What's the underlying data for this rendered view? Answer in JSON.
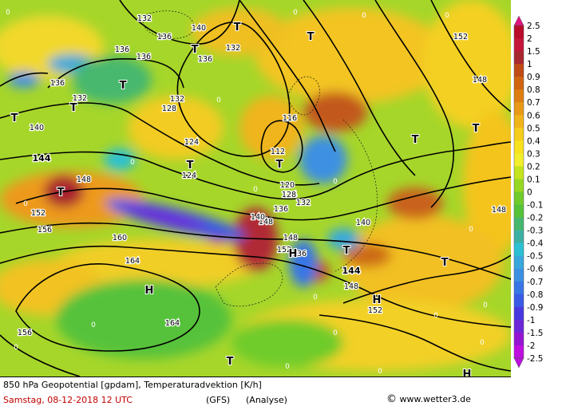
{
  "footer": {
    "title": "850 hPa Geopotential [gpdam], Temperaturadvektion [K/h]",
    "date": "Samstag, 08-12-2018  12 UTC",
    "model": "(GFS)",
    "mode": "(Analyse)",
    "copyright_symbol": "©",
    "site": "www.wetter3.de"
  },
  "legend": {
    "levels": [
      "2.5",
      "2",
      "1.5",
      "1",
      "0.9",
      "0.8",
      "0.7",
      "0.6",
      "0.5",
      "0.4",
      "0.3",
      "0.2",
      "0.1",
      "0",
      "-0.1",
      "-0.2",
      "-0.3",
      "-0.4",
      "-0.5",
      "-0.6",
      "-0.7",
      "-0.8",
      "-0.9",
      "-1",
      "-1.5",
      "-2",
      "-2.5"
    ],
    "colors": [
      "#e2127e",
      "#b90b2a",
      "#c3163a",
      "#a82830",
      "#c04a16",
      "#d06410",
      "#de7e12",
      "#e89a16",
      "#f0b418",
      "#f5ce1c",
      "#f8e21e",
      "#f2ee2c",
      "#c4e41e",
      "#96d824",
      "#70cc2c",
      "#56c23a",
      "#46b86e",
      "#3cb0a4",
      "#2cc0d4",
      "#38a8dc",
      "#3c90e2",
      "#3876e6",
      "#3a5ae6",
      "#4838e0",
      "#6c28d8",
      "#9416d2",
      "#be0ee0"
    ]
  },
  "map": {
    "contour_labels": [
      "132",
      "136",
      "140",
      "132",
      "152",
      "136",
      "136",
      "136",
      "136",
      "148",
      "132",
      "128",
      "132",
      "140",
      "116",
      "124",
      "112",
      "124",
      "120",
      "124",
      "144",
      "148",
      "128",
      "132",
      "136",
      "152",
      "148",
      "140",
      "156",
      "140",
      "148",
      "160",
      "148",
      "152",
      "136",
      "144",
      "164",
      "148",
      "152",
      "156",
      "164"
    ],
    "low_labels": [
      "T",
      "T",
      "T",
      "T",
      "T",
      "T",
      "T",
      "T",
      "T",
      "T",
      "T",
      "T",
      "T",
      "T"
    ],
    "high_labels": [
      "H",
      "H",
      "H",
      "H"
    ],
    "zero_labels": [
      "0",
      "0",
      "0",
      "0",
      "0",
      "0",
      "0",
      "0",
      "0",
      "0",
      "0",
      "0",
      "0",
      "0",
      "0",
      "0",
      "0",
      "0",
      "0",
      "0"
    ]
  }
}
